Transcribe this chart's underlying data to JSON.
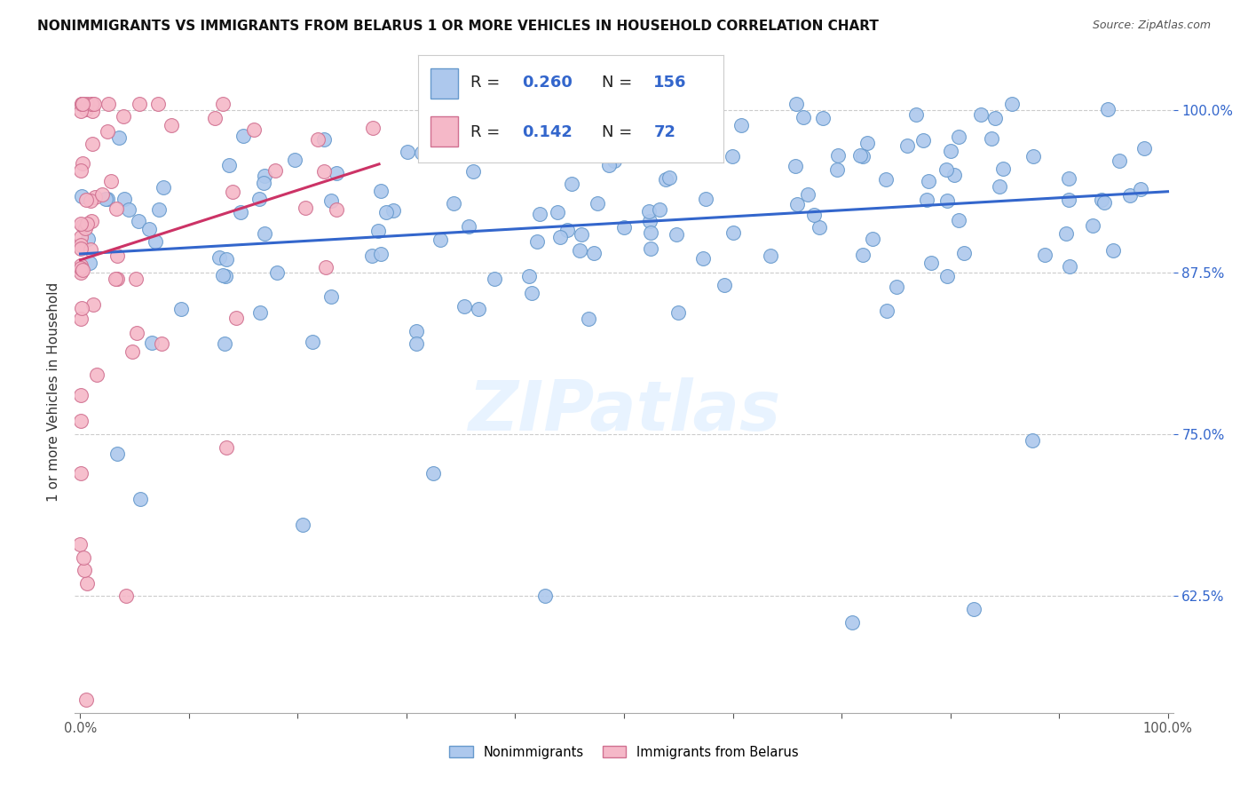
{
  "title": "NONIMMIGRANTS VS IMMIGRANTS FROM BELARUS 1 OR MORE VEHICLES IN HOUSEHOLD CORRELATION CHART",
  "source": "Source: ZipAtlas.com",
  "ylabel": "1 or more Vehicles in Household",
  "yticks": [
    0.625,
    0.75,
    0.875,
    1.0
  ],
  "ytick_labels": [
    "62.5%",
    "75.0%",
    "87.5%",
    "100.0%"
  ],
  "legend_R_ni": "0.260",
  "legend_N_ni": "156",
  "legend_R_im": "0.142",
  "legend_N_im": "72",
  "nonimmigrant_color": "#adc8ed",
  "nonimmigrant_edge": "#6699cc",
  "immigrant_color": "#f5b8c8",
  "immigrant_edge": "#d07090",
  "trend_ni_color": "#3366cc",
  "trend_im_color": "#cc3366",
  "background_color": "#ffffff",
  "watermark": "ZIPatlas",
  "xmin": 0.0,
  "xmax": 1.0,
  "ymin": 0.535,
  "ymax": 1.03
}
